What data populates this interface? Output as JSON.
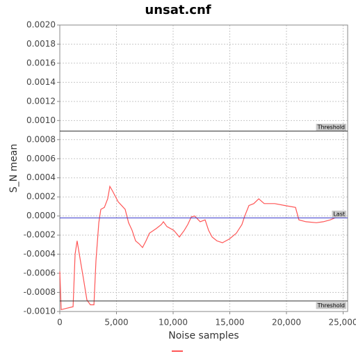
{
  "chart_data": {
    "type": "line",
    "title": "unsat.cnf",
    "x_label": "Noise samples",
    "y_label": "S_N mean",
    "xlim": [
      0,
      25400
    ],
    "ylim": [
      -0.001,
      0.002
    ],
    "xticks": [
      0,
      {
        "value": 5000,
        "label": "5,000"
      },
      {
        "value": 10000,
        "label": "10,000"
      },
      {
        "value": 15000,
        "label": "15,000"
      },
      {
        "value": 20000,
        "label": "20,000"
      },
      {
        "value": 25000,
        "label": "25,000"
      }
    ],
    "yticks": [
      {
        "value": -0.001,
        "label": "-0.0010"
      },
      {
        "value": -0.0008,
        "label": "-0.0008"
      },
      {
        "value": -0.0006,
        "label": "-0.0006"
      },
      {
        "value": -0.0004,
        "label": "-0.0004"
      },
      {
        "value": -0.0002,
        "label": "-0.0002"
      },
      {
        "value": 0,
        "label": "0.0000"
      },
      {
        "value": 0.0002,
        "label": "0.0002"
      },
      {
        "value": 0.0004,
        "label": "0.0004"
      },
      {
        "value": 0.0006,
        "label": "0.0006"
      },
      {
        "value": 0.0008,
        "label": "0.0008"
      },
      {
        "value": 0.001,
        "label": "0.0010"
      },
      {
        "value": 0.0012,
        "label": "0.0012"
      },
      {
        "value": 0.0014,
        "label": "0.0014"
      },
      {
        "value": 0.0016,
        "label": "0.0016"
      },
      {
        "value": 0.0018,
        "label": "0.0018"
      },
      {
        "value": 0.002,
        "label": "0.0020"
      }
    ],
    "grid": true,
    "x": [
      0,
      120,
      1170,
      1350,
      1530,
      1780,
      2090,
      2390,
      2700,
      3010,
      3190,
      3440,
      3620,
      3930,
      4230,
      4420,
      4660,
      5150,
      5770,
      6070,
      6380,
      6690,
      6990,
      7300,
      7610,
      7910,
      8530,
      8960,
      9140,
      9450,
      10060,
      10550,
      10980,
      11290,
      11600,
      11900,
      12390,
      12820,
      13130,
      13440,
      13860,
      14350,
      14970,
      15580,
      16070,
      16320,
      16690,
      17120,
      17550,
      18040,
      18960,
      19880,
      20800,
      21100,
      21720,
      22640,
      23250,
      23870,
      24480
    ],
    "series": [
      {
        "color": "#ff5555",
        "values": [
          -0.00058,
          -0.00098,
          -0.00095,
          -0.0004,
          -0.00026,
          -0.00044,
          -0.00066,
          -0.00088,
          -0.00093,
          -0.00093,
          -0.00047,
          -7e-05,
          7e-05,
          9e-05,
          0.00018,
          0.00031,
          0.00026,
          0.00015,
          7e-05,
          -7e-05,
          -0.00015,
          -0.00026,
          -0.00029,
          -0.00033,
          -0.00026,
          -0.00018,
          -0.00013,
          -9e-05,
          -6e-05,
          -0.00011,
          -0.00015,
          -0.00022,
          -0.00015,
          -9e-05,
          -1e-05,
          0,
          -6e-05,
          -4e-05,
          -0.00015,
          -0.00022,
          -0.00026,
          -0.00028,
          -0.00024,
          -0.00018,
          -9e-05,
          0,
          0.00011,
          0.00013,
          0.00018,
          0.00013,
          0.00013,
          0.00011,
          9e-05,
          -4e-05,
          -6e-05,
          -7e-05,
          -6e-05,
          -4e-05,
          -1e-05
        ]
      }
    ],
    "lines": [
      {
        "label": "Threshold",
        "value": 0.00089,
        "color": "#333333"
      },
      {
        "label": "Threshold",
        "value": -0.00089,
        "color": "#333333"
      },
      {
        "label": "Last",
        "value": -2e-05,
        "color": "#3333cc"
      }
    ]
  }
}
